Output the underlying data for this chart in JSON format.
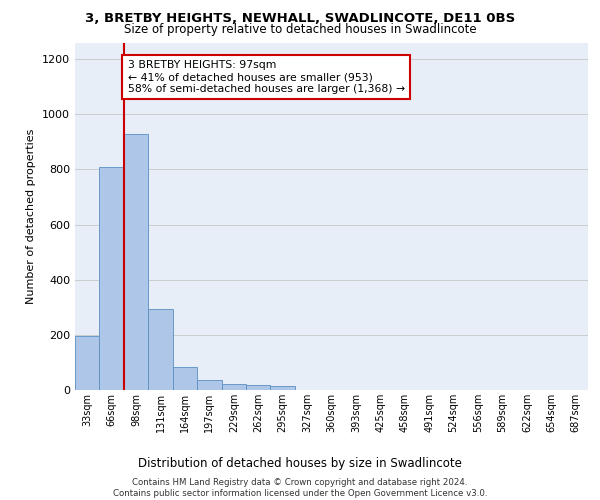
{
  "title": "3, BRETBY HEIGHTS, NEWHALL, SWADLINCOTE, DE11 0BS",
  "subtitle": "Size of property relative to detached houses in Swadlincote",
  "xlabel": "Distribution of detached houses by size in Swadlincote",
  "ylabel": "Number of detached properties",
  "bin_labels": [
    "33sqm",
    "66sqm",
    "98sqm",
    "131sqm",
    "164sqm",
    "197sqm",
    "229sqm",
    "262sqm",
    "295sqm",
    "327sqm",
    "360sqm",
    "393sqm",
    "425sqm",
    "458sqm",
    "491sqm",
    "524sqm",
    "556sqm",
    "589sqm",
    "622sqm",
    "654sqm",
    "687sqm"
  ],
  "bar_values": [
    195,
    810,
    930,
    295,
    85,
    35,
    20,
    17,
    13,
    0,
    0,
    0,
    0,
    0,
    0,
    0,
    0,
    0,
    0,
    0,
    0
  ],
  "bar_color": "#aec6e8",
  "bar_edge_color": "#5a8fc2",
  "grid_color": "#cccccc",
  "annotation_box_text": "3 BRETBY HEIGHTS: 97sqm\n← 41% of detached houses are smaller (953)\n58% of semi-detached houses are larger (1,368) →",
  "annotation_box_color": "#ffffff",
  "annotation_box_edge": "#cc0000",
  "vline_color": "#cc0000",
  "ylim": [
    0,
    1260
  ],
  "yticks": [
    0,
    200,
    400,
    600,
    800,
    1000,
    1200
  ],
  "footer_text": "Contains HM Land Registry data © Crown copyright and database right 2024.\nContains public sector information licensed under the Open Government Licence v3.0.",
  "background_color": "#e8eef7"
}
